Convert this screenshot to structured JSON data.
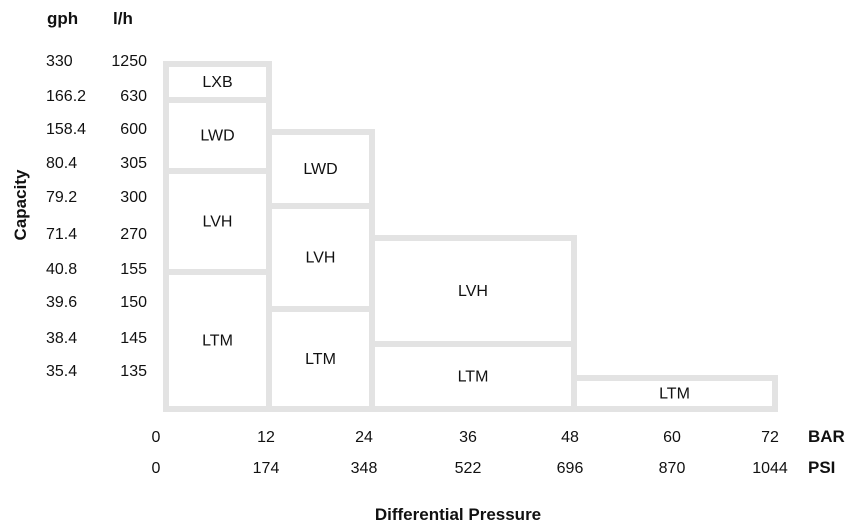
{
  "chart_data": {
    "type": "table",
    "xlabel": "Differential Pressure",
    "ylabel": "Capacity",
    "y_units": [
      "gph",
      "l/h"
    ],
    "x_units": [
      "BAR",
      "PSI"
    ],
    "y_rows": [
      {
        "gph": "330",
        "lh": "1250"
      },
      {
        "gph": "166.2",
        "lh": "630"
      },
      {
        "gph": "158.4",
        "lh": "600"
      },
      {
        "gph": "80.4",
        "lh": "305"
      },
      {
        "gph": "79.2",
        "lh": "300"
      },
      {
        "gph": "71.4",
        "lh": "270"
      },
      {
        "gph": "40.8",
        "lh": "155"
      },
      {
        "gph": "39.6",
        "lh": "150"
      },
      {
        "gph": "38.4",
        "lh": "145"
      },
      {
        "gph": "35.4",
        "lh": "135"
      }
    ],
    "x_ticks": [
      {
        "bar": "0",
        "psi": "0"
      },
      {
        "bar": "12",
        "psi": "174"
      },
      {
        "bar": "24",
        "psi": "348"
      },
      {
        "bar": "36",
        "psi": "522"
      },
      {
        "bar": "48",
        "psi": "696"
      },
      {
        "bar": "60",
        "psi": "870"
      },
      {
        "bar": "72",
        "psi": "1044"
      }
    ],
    "zones": [
      {
        "label": "LXB",
        "x_from": 0,
        "x_to": 12,
        "y_from": 630,
        "y_to": 1250
      },
      {
        "label": "LWD",
        "x_from": 0,
        "x_to": 12,
        "y_from": 305,
        "y_to": 630
      },
      {
        "label": "LVH",
        "x_from": 0,
        "x_to": 12,
        "y_from": 155,
        "y_to": 305
      },
      {
        "label": "LTM",
        "x_from": 0,
        "x_to": 12,
        "y_from": 0,
        "y_to": 155
      },
      {
        "label": "LWD",
        "x_from": 12,
        "x_to": 24,
        "y_from": 300,
        "y_to": 600
      },
      {
        "label": "LVH",
        "x_from": 12,
        "x_to": 24,
        "y_from": 150,
        "y_to": 300
      },
      {
        "label": "LTM",
        "x_from": 12,
        "x_to": 24,
        "y_from": 0,
        "y_to": 150
      },
      {
        "label": "LVH",
        "x_from": 24,
        "x_to": 48,
        "y_from": 145,
        "y_to": 270
      },
      {
        "label": "LTM",
        "x_from": 24,
        "x_to": 48,
        "y_from": 0,
        "y_to": 145
      },
      {
        "label": "LTM",
        "x_from": 48,
        "x_to": 72,
        "y_from": 0,
        "y_to": 135
      }
    ]
  }
}
